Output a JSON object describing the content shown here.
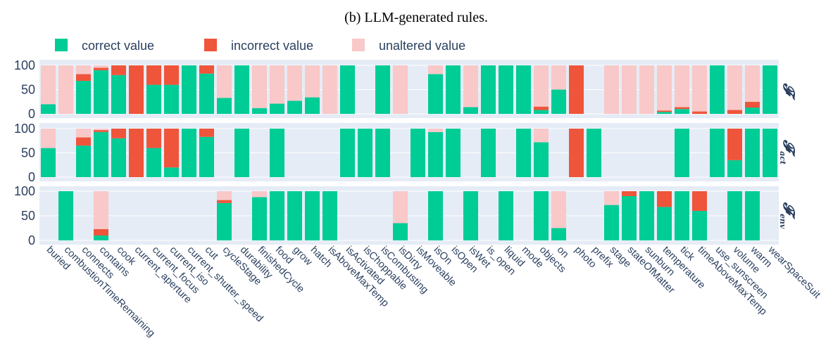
{
  "chart_data": {
    "type": "bar",
    "stacked": true,
    "title": "(b) LLM-generated rules.",
    "legend": [
      {
        "name": "correct value",
        "color": "#00cc96"
      },
      {
        "name": "incorrect value",
        "color": "#ef553b"
      },
      {
        "name": "unaltered value",
        "color": "#f9c8c8"
      }
    ],
    "categories": [
      "buried",
      "combustionTimeRemaining",
      "connects",
      "contains",
      "cook",
      "current_aperture",
      "current_focus",
      "current_iso",
      "current_shutter_speed",
      "cut",
      "cycleStage",
      "durability",
      "finishedCycle",
      "food",
      "grow",
      "hatch",
      "isAboveMaxTemp",
      "isActivated",
      "isChoppable",
      "isCombusting",
      "isDirty",
      "isMoveable",
      "isOn",
      "isOpen",
      "isWet",
      "is_open",
      "liquid",
      "mode",
      "objects",
      "on",
      "photo",
      "prefix",
      "stage",
      "stateOfMatter",
      "sunburn",
      "temperature",
      "tick",
      "timeAboveMaxTemp",
      "use_sunscreen",
      "volume",
      "warm",
      "wearSpaceSuit"
    ],
    "ylim": [
      0,
      100
    ],
    "yticks": [
      "0",
      "50",
      "100"
    ],
    "panels": [
      {
        "title": "𝓕",
        "subscript": "",
        "correct": [
          20,
          0,
          68,
          90,
          80,
          0,
          60,
          60,
          100,
          83,
          33,
          100,
          12,
          21,
          27,
          34,
          0,
          100,
          0,
          100,
          0,
          0,
          82,
          100,
          14,
          100,
          100,
          100,
          8,
          50,
          0,
          0,
          0,
          0,
          0,
          4,
          10,
          0,
          100,
          0,
          13,
          100
        ],
        "incorrect": [
          0,
          0,
          14,
          5,
          20,
          100,
          40,
          40,
          0,
          17,
          0,
          0,
          0,
          0,
          0,
          0,
          0,
          0,
          0,
          0,
          0,
          0,
          0,
          0,
          0,
          0,
          0,
          0,
          7,
          0,
          100,
          0,
          0,
          0,
          0,
          3,
          4,
          5,
          0,
          8,
          12,
          0
        ],
        "unaltered": [
          80,
          100,
          18,
          5,
          0,
          0,
          0,
          0,
          0,
          0,
          67,
          0,
          88,
          79,
          73,
          66,
          100,
          0,
          0,
          0,
          100,
          0,
          18,
          0,
          86,
          0,
          0,
          0,
          85,
          50,
          0,
          0,
          100,
          100,
          100,
          93,
          86,
          95,
          0,
          92,
          75,
          0
        ]
      },
      {
        "title": "𝓕",
        "subscript": "act",
        "correct": [
          60,
          0,
          65,
          93,
          80,
          0,
          60,
          20,
          100,
          83,
          0,
          100,
          0,
          100,
          0,
          0,
          0,
          100,
          100,
          100,
          0,
          100,
          93,
          100,
          0,
          100,
          0,
          100,
          72,
          0,
          0,
          100,
          0,
          0,
          0,
          0,
          100,
          0,
          100,
          35,
          100,
          100
        ],
        "incorrect": [
          0,
          0,
          17,
          4,
          20,
          100,
          40,
          80,
          0,
          17,
          0,
          0,
          0,
          0,
          0,
          0,
          0,
          0,
          0,
          0,
          0,
          0,
          0,
          0,
          0,
          0,
          0,
          0,
          0,
          0,
          100,
          0,
          0,
          0,
          0,
          0,
          0,
          0,
          0,
          65,
          0,
          0
        ],
        "unaltered": [
          40,
          0,
          18,
          3,
          0,
          0,
          0,
          0,
          0,
          0,
          0,
          0,
          0,
          0,
          0,
          0,
          0,
          0,
          0,
          0,
          0,
          0,
          7,
          0,
          0,
          0,
          0,
          0,
          28,
          0,
          0,
          0,
          0,
          0,
          0,
          0,
          0,
          0,
          0,
          0,
          0,
          0
        ]
      },
      {
        "title": "𝓕",
        "subscript": "env",
        "correct": [
          0,
          100,
          0,
          10,
          0,
          0,
          0,
          0,
          0,
          0,
          76,
          0,
          88,
          100,
          100,
          100,
          100,
          0,
          0,
          0,
          35,
          0,
          100,
          0,
          100,
          0,
          100,
          0,
          100,
          25,
          0,
          0,
          72,
          90,
          100,
          68,
          100,
          60,
          0,
          100,
          100,
          0
        ],
        "incorrect": [
          0,
          0,
          0,
          13,
          0,
          0,
          0,
          0,
          0,
          0,
          6,
          0,
          0,
          0,
          0,
          0,
          0,
          0,
          0,
          0,
          0,
          0,
          0,
          0,
          0,
          0,
          0,
          0,
          0,
          0,
          0,
          0,
          0,
          10,
          0,
          32,
          0,
          40,
          0,
          0,
          0,
          0
        ],
        "unaltered": [
          0,
          0,
          0,
          77,
          0,
          0,
          0,
          0,
          0,
          0,
          18,
          0,
          12,
          0,
          0,
          0,
          0,
          0,
          0,
          0,
          65,
          0,
          0,
          0,
          0,
          0,
          0,
          0,
          0,
          75,
          0,
          0,
          28,
          0,
          0,
          0,
          0,
          0,
          0,
          0,
          0,
          0
        ]
      }
    ]
  }
}
